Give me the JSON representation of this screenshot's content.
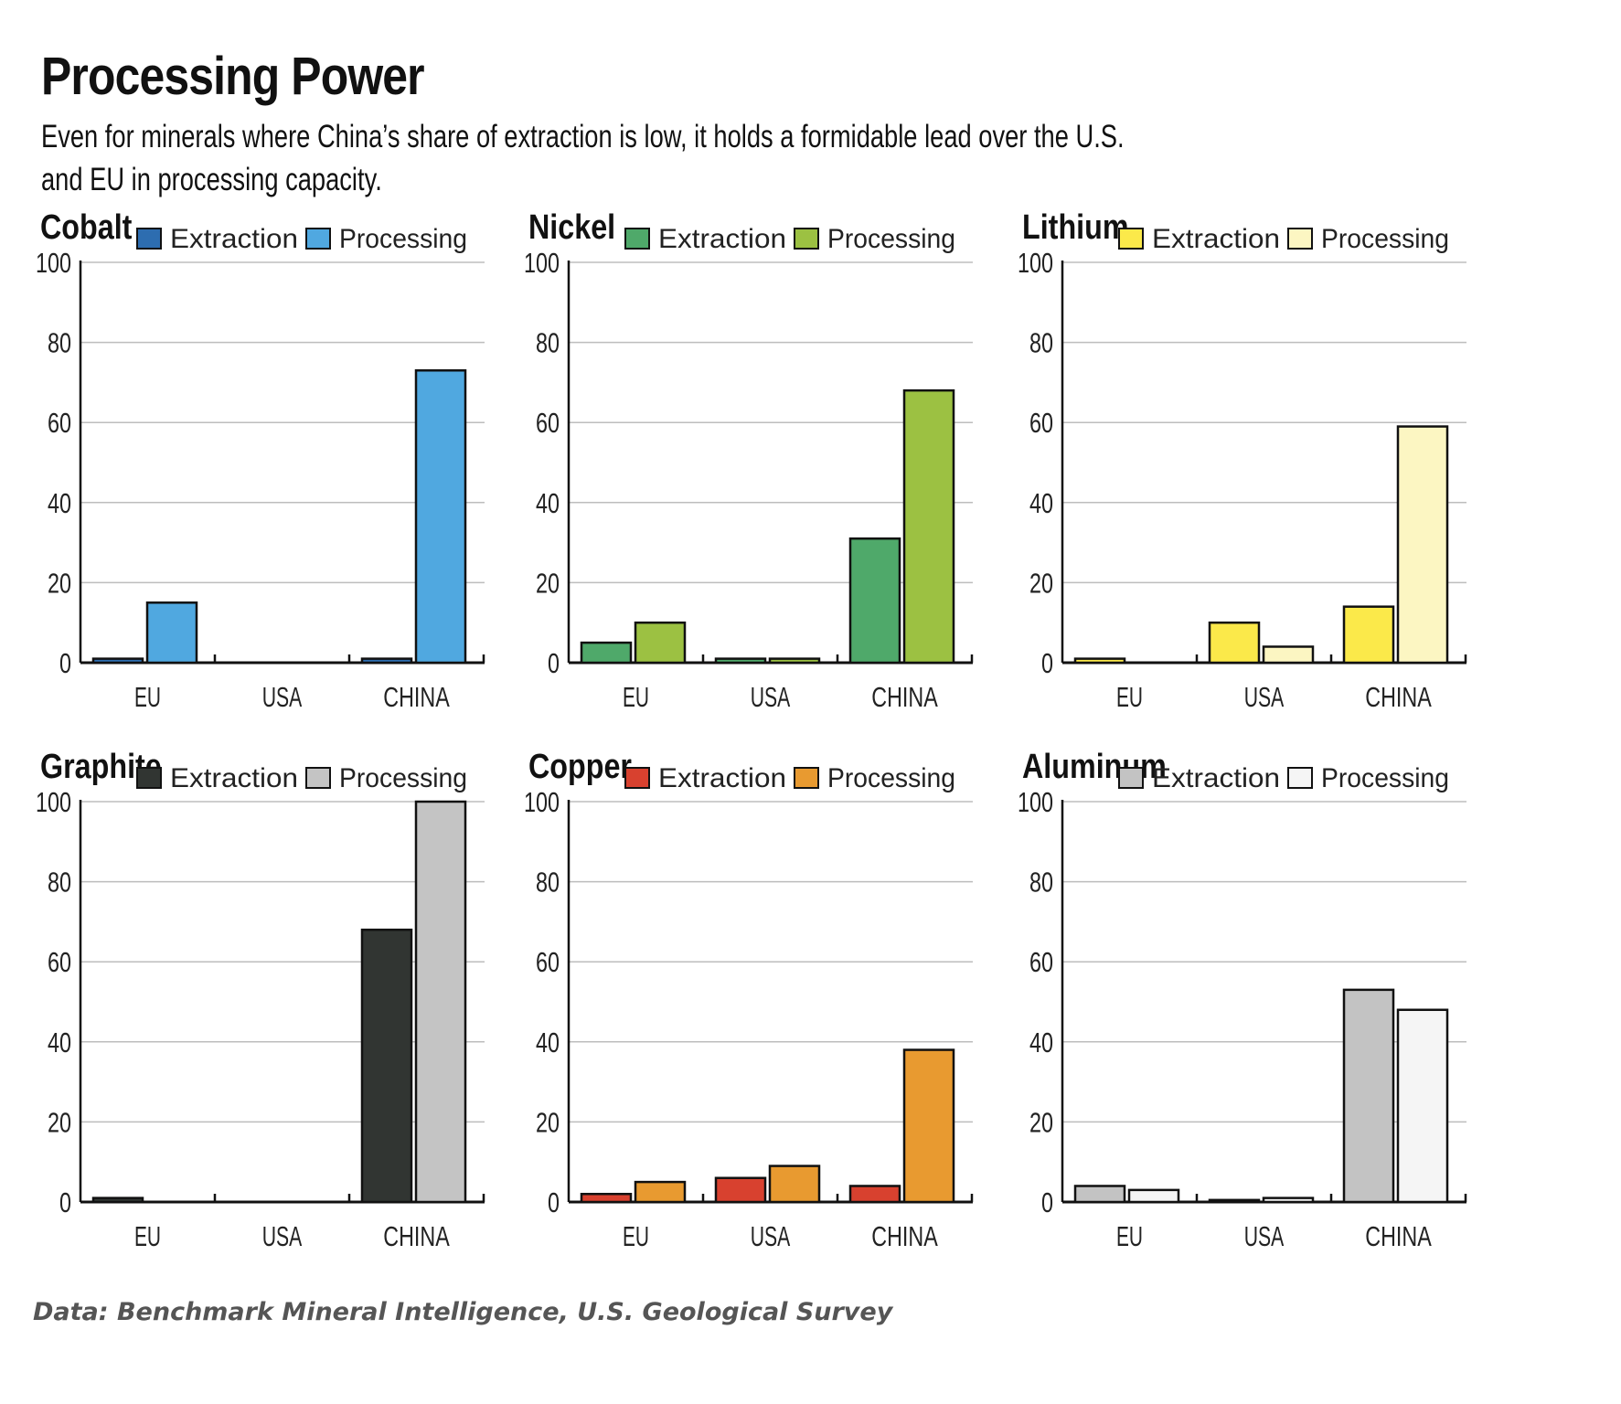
{
  "title": "Processing Power",
  "subtitle": "Even for minerals where China’s share of extraction is low, it holds a formidable lead over the U.S. and EU in processing capacity.",
  "source": "Data: Benchmark Mineral Intelligence, U.S. Geological Survey",
  "chart_data": [
    {
      "type": "bar",
      "title": "Cobalt",
      "categories": [
        "EU",
        "USA",
        "CHINA"
      ],
      "series": [
        {
          "name": "Extraction",
          "values": [
            1,
            0,
            1
          ],
          "color": "#2d6db0"
        },
        {
          "name": "Processing",
          "values": [
            15,
            0,
            73
          ],
          "color": "#50a8e0"
        }
      ],
      "ylim": [
        0,
        100
      ],
      "yticks": [
        0,
        20,
        40,
        60,
        80,
        100
      ],
      "grid": true,
      "legend": "top-right"
    },
    {
      "type": "bar",
      "title": "Nickel",
      "categories": [
        "EU",
        "USA",
        "CHINA"
      ],
      "series": [
        {
          "name": "Extraction",
          "values": [
            5,
            1,
            31
          ],
          "color": "#4fa96a"
        },
        {
          "name": "Processing",
          "values": [
            10,
            1,
            68
          ],
          "color": "#9cc142"
        }
      ],
      "ylim": [
        0,
        100
      ],
      "yticks": [
        0,
        20,
        40,
        60,
        80,
        100
      ],
      "grid": true,
      "legend": "top-right"
    },
    {
      "type": "bar",
      "title": "Lithium",
      "categories": [
        "EU",
        "USA",
        "CHINA"
      ],
      "series": [
        {
          "name": "Extraction",
          "values": [
            1,
            10,
            14
          ],
          "color": "#fbe94a"
        },
        {
          "name": "Processing",
          "values": [
            0,
            4,
            59
          ],
          "color": "#fcf6c2"
        }
      ],
      "ylim": [
        0,
        100
      ],
      "yticks": [
        0,
        20,
        40,
        60,
        80,
        100
      ],
      "grid": true,
      "legend": "top-right"
    },
    {
      "type": "bar",
      "title": "Graphite",
      "categories": [
        "EU",
        "USA",
        "CHINA"
      ],
      "series": [
        {
          "name": "Extraction",
          "values": [
            1,
            0,
            68
          ],
          "color": "#313532"
        },
        {
          "name": "Processing",
          "values": [
            0,
            0,
            100
          ],
          "color": "#c4c4c4"
        }
      ],
      "ylim": [
        0,
        100
      ],
      "yticks": [
        0,
        20,
        40,
        60,
        80,
        100
      ],
      "grid": true,
      "legend": "top-right"
    },
    {
      "type": "bar",
      "title": "Copper",
      "categories": [
        "EU",
        "USA",
        "CHINA"
      ],
      "series": [
        {
          "name": "Extraction",
          "values": [
            2,
            6,
            4
          ],
          "color": "#d8412f"
        },
        {
          "name": "Processing",
          "values": [
            5,
            9,
            38
          ],
          "color": "#e89a30"
        }
      ],
      "ylim": [
        0,
        100
      ],
      "yticks": [
        0,
        20,
        40,
        60,
        80,
        100
      ],
      "grid": true,
      "legend": "top-right"
    },
    {
      "type": "bar",
      "title": "Aluminum",
      "categories": [
        "EU",
        "USA",
        "CHINA"
      ],
      "series": [
        {
          "name": "Extraction",
          "values": [
            4,
            0.5,
            53
          ],
          "color": "#c3c3c3"
        },
        {
          "name": "Processing",
          "values": [
            3,
            1,
            48
          ],
          "color": "#f5f5f5"
        }
      ],
      "ylim": [
        0,
        100
      ],
      "yticks": [
        0,
        20,
        40,
        60,
        80,
        100
      ],
      "grid": true,
      "legend": "top-right"
    }
  ]
}
